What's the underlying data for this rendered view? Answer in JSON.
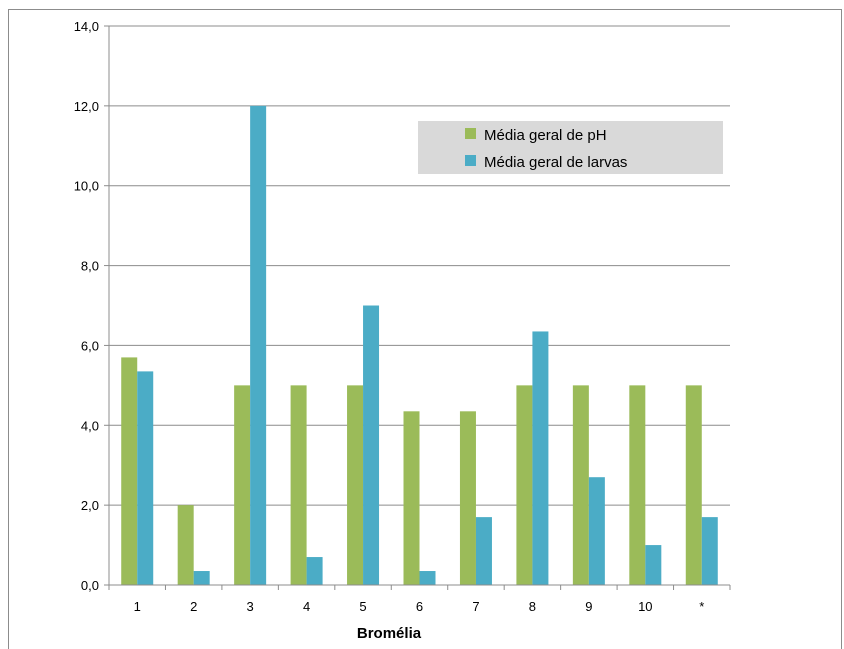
{
  "chart_data": {
    "type": "bar",
    "title": "",
    "xlabel": "Bromélia",
    "ylabel": "",
    "ylim": [
      0,
      14
    ],
    "y_ticks": [
      "0,0",
      "2,0",
      "4,0",
      "6,0",
      "8,0",
      "10,0",
      "12,0",
      "14,0"
    ],
    "categories": [
      "1",
      "2",
      "3",
      "4",
      "5",
      "6",
      "7",
      "8",
      "9",
      "10",
      "*"
    ],
    "series": [
      {
        "name": "Média geral de pH",
        "color": "#9BBB59",
        "values": [
          5.7,
          2.0,
          5.0,
          5.0,
          5.0,
          4.35,
          4.35,
          5.0,
          5.0,
          5.0,
          5.0
        ]
      },
      {
        "name": "Média geral de larvas",
        "color": "#4BACC6",
        "values": [
          5.35,
          0.35,
          12.0,
          0.7,
          7.0,
          0.35,
          1.7,
          6.35,
          2.7,
          1.0,
          1.7
        ]
      }
    ],
    "grid": "horizontal",
    "legend_position": "top-right"
  }
}
